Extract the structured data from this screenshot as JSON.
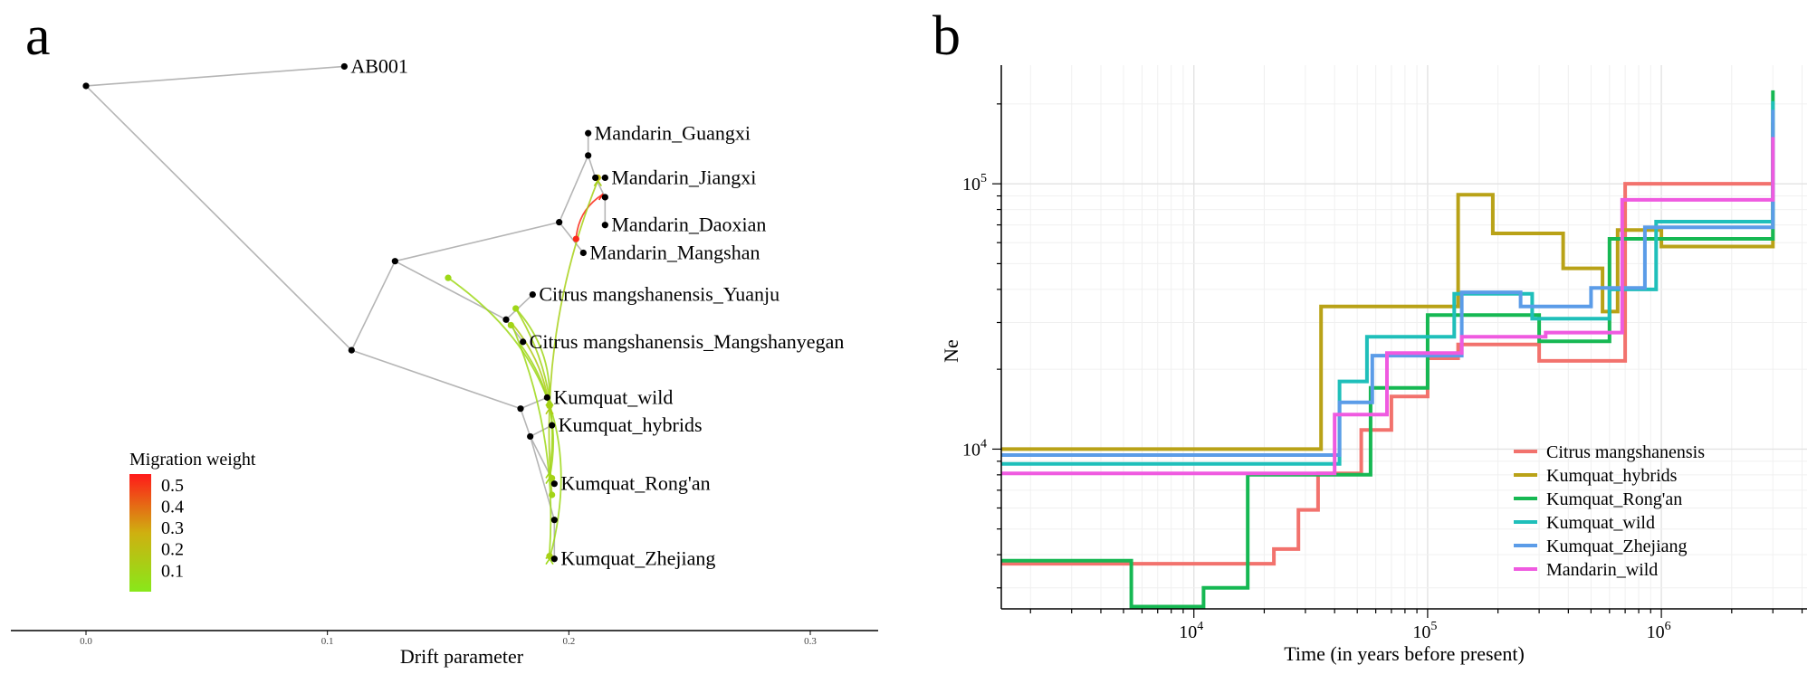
{
  "chart_data": [
    {
      "type": "tree",
      "panel_label": "a",
      "xlabel": "Drift parameter",
      "x_ticks": [
        "0.0",
        "0.1",
        "0.2",
        "0.3"
      ],
      "x_tick_values": [
        0.0,
        0.1,
        0.2,
        0.3
      ],
      "xlim": [
        -0.015,
        0.315
      ],
      "ylim": [
        0,
        100
      ],
      "legend_title": "Migration weight",
      "legend_ticks": [
        "0.5",
        "0.4",
        "0.3",
        "0.2",
        "0.1"
      ],
      "legend_tick_values": [
        0.5,
        0.4,
        0.3,
        0.2,
        0.1
      ],
      "legend_range": [
        0.0,
        0.55
      ],
      "colors": {
        "low": "#88e81a",
        "mid": "#cfb010",
        "high": "#ff1a1a",
        "edge": "#b5b5b5"
      },
      "nodes": [
        {
          "id": "root",
          "x": 0.0,
          "y": 93.5
        },
        {
          "id": "AB001",
          "x": 0.107,
          "y": 97.0,
          "label": "AB001"
        },
        {
          "id": "n1",
          "x": 0.11,
          "y": 46.0
        },
        {
          "id": "n2",
          "x": 0.128,
          "y": 62.0
        },
        {
          "id": "n3",
          "x": 0.196,
          "y": 69.0
        },
        {
          "id": "n4",
          "x": 0.208,
          "y": 81.0
        },
        {
          "id": "MG",
          "x": 0.208,
          "y": 85.0,
          "label": "Mandarin_Guangxi"
        },
        {
          "id": "n5",
          "x": 0.211,
          "y": 77.0
        },
        {
          "id": "MJ",
          "x": 0.215,
          "y": 77.0,
          "label": "Mandarin_Jiangxi"
        },
        {
          "id": "n6",
          "x": 0.215,
          "y": 73.5
        },
        {
          "id": "MD",
          "x": 0.215,
          "y": 68.5,
          "label": "Mandarin_Daoxian"
        },
        {
          "id": "MM",
          "x": 0.206,
          "y": 63.5,
          "label": "Mandarin_Mangshan"
        },
        {
          "id": "n7",
          "x": 0.174,
          "y": 51.5
        },
        {
          "id": "CY",
          "x": 0.185,
          "y": 56.0,
          "label": "Citrus mangshanensis_Yuanju"
        },
        {
          "id": "CMg",
          "x": 0.181,
          "y": 47.5,
          "label": "Citrus mangshanensis_Mangshanyegan"
        },
        {
          "id": "n8",
          "x": 0.18,
          "y": 35.5
        },
        {
          "id": "KW",
          "x": 0.191,
          "y": 37.5,
          "label": "Kumquat_wild"
        },
        {
          "id": "KH",
          "x": 0.193,
          "y": 32.5,
          "label": "Kumquat_hybrids"
        },
        {
          "id": "n9",
          "x": 0.184,
          "y": 30.5
        },
        {
          "id": "KR",
          "x": 0.194,
          "y": 22.0,
          "label": "Kumquat_Rong'an"
        },
        {
          "id": "n10",
          "x": 0.194,
          "y": 15.5
        },
        {
          "id": "KZ",
          "x": 0.194,
          "y": 8.5,
          "label": "Kumquat_Zhejiang"
        }
      ],
      "edges": [
        [
          "root",
          "AB001"
        ],
        [
          "root",
          "n1"
        ],
        [
          "n1",
          "n2"
        ],
        [
          "n1",
          "n8"
        ],
        [
          "n2",
          "n3"
        ],
        [
          "n2",
          "n7"
        ],
        [
          "n3",
          "n4"
        ],
        [
          "n3",
          "MM"
        ],
        [
          "n4",
          "MG"
        ],
        [
          "n4",
          "n5"
        ],
        [
          "n5",
          "MJ"
        ],
        [
          "n5",
          "n6"
        ],
        [
          "n6",
          "MD"
        ],
        [
          "n7",
          "CY"
        ],
        [
          "n7",
          "CMg"
        ],
        [
          "n8",
          "KW"
        ],
        [
          "n8",
          "n9"
        ],
        [
          "n9",
          "KH"
        ],
        [
          "n9",
          "n10"
        ],
        [
          "n9",
          "KR"
        ],
        [
          "n10",
          "KZ"
        ]
      ],
      "migrations": [
        {
          "from": [
            0.203,
            66.0
          ],
          "to": [
            0.214,
            74.0
          ],
          "weight": 0.52,
          "bend": 0.25
        },
        {
          "from": [
            0.193,
            20.0
          ],
          "to": [
            0.212,
            76.5
          ],
          "weight": 0.12,
          "bend": 0.12
        },
        {
          "from": [
            0.15,
            59.0
          ],
          "to": [
            0.192,
            8.5
          ],
          "weight": 0.08,
          "bend": 0.35
        },
        {
          "from": [
            0.178,
            53.5
          ],
          "to": [
            0.192,
            37.0
          ],
          "weight": 0.09,
          "bend": 0.2
        },
        {
          "from": [
            0.178,
            53.5
          ],
          "to": [
            0.192,
            24.0
          ],
          "weight": 0.1,
          "bend": 0.18
        },
        {
          "from": [
            0.176,
            51.0
          ],
          "to": [
            0.192,
            35.5
          ],
          "weight": 0.15,
          "bend": 0.15
        },
        {
          "from": [
            0.18,
            47.0
          ],
          "to": [
            0.192,
            23.0
          ],
          "weight": 0.09,
          "bend": 0.22
        },
        {
          "from": [
            0.176,
            51.0
          ],
          "to": [
            0.192,
            9.5
          ],
          "weight": 0.08,
          "bend": 0.12
        }
      ],
      "migration_nodes": [
        {
          "x": 0.203,
          "y": 66.0,
          "weight": 0.52
        },
        {
          "x": 0.212,
          "y": 77.0,
          "weight": 0.22
        },
        {
          "x": 0.15,
          "y": 59.0,
          "weight": 0.08
        },
        {
          "x": 0.178,
          "y": 53.5,
          "weight": 0.09
        },
        {
          "x": 0.193,
          "y": 20.0,
          "weight": 0.1
        },
        {
          "x": 0.192,
          "y": 9.0,
          "weight": 0.12
        },
        {
          "x": 0.192,
          "y": 36.0,
          "weight": 0.12
        },
        {
          "x": 0.193,
          "y": 23.0,
          "weight": 0.11
        },
        {
          "x": 0.176,
          "y": 50.5,
          "weight": 0.1
        }
      ]
    },
    {
      "type": "line",
      "panel_label": "b",
      "xlabel": "Time (in years before present)",
      "ylabel": "Ne",
      "x_scale": "log10",
      "y_scale": "log10",
      "xlim": [
        1500,
        4200000
      ],
      "ylim": [
        2500,
        280000
      ],
      "x_ticks": [
        10000,
        100000,
        1000000
      ],
      "x_tick_bases": [
        "10",
        "10",
        "10"
      ],
      "x_tick_exps": [
        "4",
        "5",
        "6"
      ],
      "y_ticks": [
        10000,
        100000
      ],
      "y_tick_bases": [
        "10",
        "10"
      ],
      "y_tick_exps": [
        "4",
        "5"
      ],
      "series": [
        {
          "name": "Citrus mangshanensis",
          "color": "#f2726d",
          "points": [
            [
              1500,
              3700
            ],
            [
              22000,
              3700
            ],
            [
              22000,
              4200
            ],
            [
              28000,
              4200
            ],
            [
              28000,
              5900
            ],
            [
              34000,
              5900
            ],
            [
              34000,
              8100
            ],
            [
              52000,
              8100
            ],
            [
              52000,
              11800
            ],
            [
              70000,
              11800
            ],
            [
              70000,
              15800
            ],
            [
              100000,
              15800
            ],
            [
              100000,
              22000
            ],
            [
              135000,
              22000
            ],
            [
              135000,
              24800
            ],
            [
              300000,
              24800
            ],
            [
              300000,
              21500
            ],
            [
              700000,
              21500
            ],
            [
              700000,
              100000
            ],
            [
              3000000,
              100000
            ],
            [
              3000000,
              140000
            ]
          ]
        },
        {
          "name": "Kumquat_hybrids",
          "color": "#b9a217",
          "points": [
            [
              1500,
              10000
            ],
            [
              35000,
              10000
            ],
            [
              35000,
              34500
            ],
            [
              135000,
              34500
            ],
            [
              135000,
              91000
            ],
            [
              190000,
              91000
            ],
            [
              190000,
              65000
            ],
            [
              380000,
              65000
            ],
            [
              380000,
              48000
            ],
            [
              560000,
              48000
            ],
            [
              560000,
              33000
            ],
            [
              650000,
              33000
            ],
            [
              650000,
              67000
            ],
            [
              1000000,
              67000
            ],
            [
              1000000,
              58000
            ],
            [
              3000000,
              58000
            ],
            [
              3000000,
              170000
            ]
          ]
        },
        {
          "name": "Kumquat_Rong'an",
          "color": "#16b853",
          "points": [
            [
              1500,
              3800
            ],
            [
              5400,
              3800
            ],
            [
              5400,
              2550
            ],
            [
              11000,
              2550
            ],
            [
              11000,
              3000
            ],
            [
              17000,
              3000
            ],
            [
              17000,
              8000
            ],
            [
              57000,
              8000
            ],
            [
              57000,
              17000
            ],
            [
              100000,
              17000
            ],
            [
              100000,
              32000
            ],
            [
              300000,
              32000
            ],
            [
              300000,
              25500
            ],
            [
              600000,
              25500
            ],
            [
              600000,
              62000
            ],
            [
              3000000,
              62000
            ],
            [
              3000000,
              225000
            ]
          ]
        },
        {
          "name": "Kumquat_wild",
          "color": "#1fbfba",
          "points": [
            [
              1500,
              8800
            ],
            [
              42000,
              8800
            ],
            [
              42000,
              18000
            ],
            [
              55000,
              18000
            ],
            [
              55000,
              26500
            ],
            [
              130000,
              26500
            ],
            [
              130000,
              38500
            ],
            [
              280000,
              38500
            ],
            [
              280000,
              31000
            ],
            [
              600000,
              31000
            ],
            [
              600000,
              40000
            ],
            [
              950000,
              40000
            ],
            [
              950000,
              72000
            ],
            [
              3000000,
              72000
            ],
            [
              3000000,
              205000
            ]
          ]
        },
        {
          "name": "Kumquat_Zhejiang",
          "color": "#5b9ce8",
          "points": [
            [
              1500,
              9500
            ],
            [
              42000,
              9500
            ],
            [
              42000,
              15000
            ],
            [
              58000,
              15000
            ],
            [
              58000,
              22500
            ],
            [
              140000,
              22500
            ],
            [
              140000,
              39000
            ],
            [
              250000,
              39000
            ],
            [
              250000,
              34500
            ],
            [
              500000,
              34500
            ],
            [
              500000,
              40500
            ],
            [
              850000,
              40500
            ],
            [
              850000,
              68500
            ],
            [
              3000000,
              68500
            ],
            [
              3000000,
              190000
            ]
          ]
        },
        {
          "name": "Mandarin_wild",
          "color": "#ef5ae0",
          "points": [
            [
              1500,
              8100
            ],
            [
              40000,
              8100
            ],
            [
              40000,
              13500
            ],
            [
              67000,
              13500
            ],
            [
              67000,
              23000
            ],
            [
              140000,
              23000
            ],
            [
              140000,
              26500
            ],
            [
              320000,
              26500
            ],
            [
              320000,
              27500
            ],
            [
              680000,
              27500
            ],
            [
              680000,
              87000
            ],
            [
              3000000,
              87000
            ],
            [
              3000000,
              150000
            ]
          ]
        }
      ]
    }
  ]
}
